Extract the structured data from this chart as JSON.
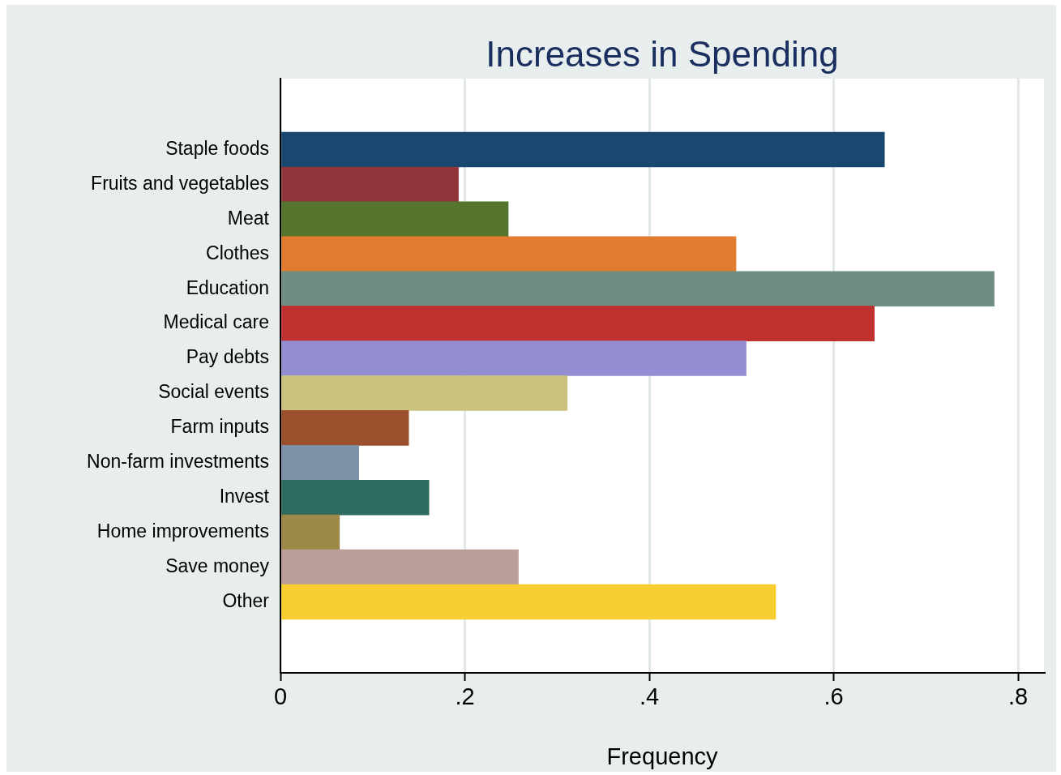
{
  "chart_data": {
    "type": "bar",
    "orientation": "horizontal",
    "title": "Increases in Spending",
    "xlabel": "Frequency",
    "categories": [
      "Staple foods",
      "Fruits and vegetables",
      "Meat",
      "Clothes",
      "Education",
      "Medical care",
      "Pay debts",
      "Social events",
      "Farm inputs",
      "Non-farm investments",
      "Invest",
      "Home improvements",
      "Save money",
      "Other"
    ],
    "values": [
      0.655,
      0.193,
      0.247,
      0.494,
      0.774,
      0.644,
      0.505,
      0.311,
      0.139,
      0.085,
      0.161,
      0.064,
      0.258,
      0.537
    ],
    "colors": [
      "#1a476f",
      "#90353b",
      "#55752f",
      "#e07b2f",
      "#6e8e84",
      "#c0302f",
      "#938dd2",
      "#cac27e",
      "#9c4f2c",
      "#7b92a8",
      "#2d6a5f",
      "#9c8847",
      "#bc9e99",
      "#f8cd2f"
    ],
    "xlim": [
      0,
      0.828
    ],
    "xticks": [
      {
        "value": 0,
        "label": "0"
      },
      {
        "value": 0.2,
        "label": ".2"
      },
      {
        "value": 0.4,
        "label": ".4"
      },
      {
        "value": 0.6,
        "label": ".6"
      },
      {
        "value": 0.8,
        "label": ".8"
      }
    ],
    "grid": "x",
    "legend": false
  }
}
